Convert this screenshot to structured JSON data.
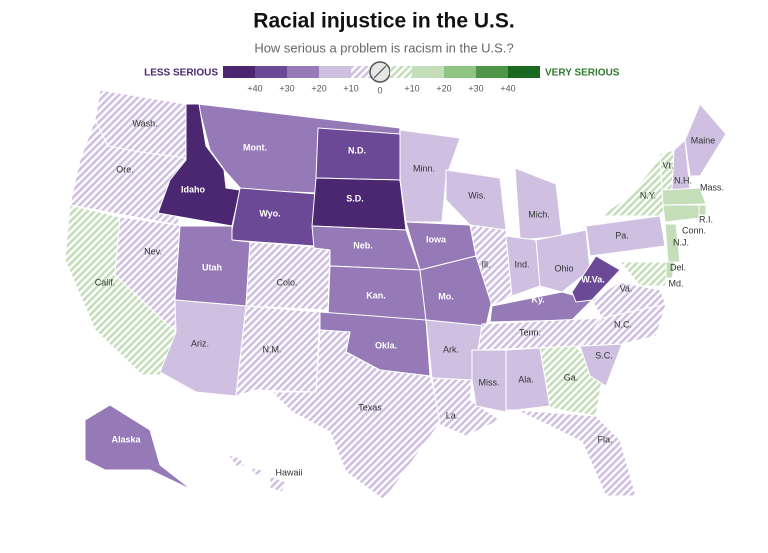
{
  "title": "Racial injustice in the U.S.",
  "subtitle": "How serious a problem is racism in the U.S.?",
  "legend": {
    "less_label": "LESS SERIOUS",
    "less_color": "#4a2770",
    "more_label": "VERY SERIOUS",
    "more_color": "#2f7a2f",
    "center_label": "0",
    "less": [
      {
        "label": "+40",
        "color": "#4a2770",
        "hatched": false
      },
      {
        "label": "+30",
        "color": "#6c4996",
        "hatched": false
      },
      {
        "label": "+20",
        "color": "#9679b7",
        "hatched": false
      },
      {
        "label": "+10",
        "color": "#cfc0e2",
        "hatched": false
      },
      {
        "color": "#cfc0e2",
        "hatched": true
      }
    ],
    "more": [
      {
        "color": "#c4deba",
        "hatched": true
      },
      {
        "label": "+10",
        "color": "#c4deba",
        "hatched": false
      },
      {
        "label": "+20",
        "color": "#8fc482",
        "hatched": false
      },
      {
        "label": "+30",
        "color": "#4f9447",
        "hatched": false
      },
      {
        "label": "+40",
        "color": "#1c6a22",
        "hatched": false
      }
    ]
  },
  "states": [
    {
      "label": "Wash.",
      "color": "#cfc0e2",
      "hatched": true
    },
    {
      "label": "Ore.",
      "color": "#cfc0e2",
      "hatched": true
    },
    {
      "label": "Calif.",
      "color": "#c4deba",
      "hatched": true
    },
    {
      "label": "Nev.",
      "color": "#cfc0e2",
      "hatched": true
    },
    {
      "label": "Mont.",
      "color": "#9679b7",
      "hatched": false
    },
    {
      "label": "Idaho",
      "color": "#4a2770",
      "hatched": false
    },
    {
      "label": "Wyo.",
      "color": "#6c4996",
      "hatched": false
    },
    {
      "label": "Utah",
      "color": "#9679b7",
      "hatched": false
    },
    {
      "label": "Colo.",
      "color": "#cfc0e2",
      "hatched": true
    },
    {
      "label": "Ariz.",
      "color": "#cfc0e2",
      "hatched": false
    },
    {
      "label": "N.M.",
      "color": "#cfc0e2",
      "hatched": true
    },
    {
      "label": "N.D.",
      "color": "#6c4996",
      "hatched": false
    },
    {
      "label": "S.D.",
      "color": "#4a2770",
      "hatched": false
    },
    {
      "label": "Neb.",
      "color": "#9679b7",
      "hatched": false
    },
    {
      "label": "Kan.",
      "color": "#9679b7",
      "hatched": false
    },
    {
      "label": "Okla.",
      "color": "#9679b7",
      "hatched": false
    },
    {
      "label": "Texas",
      "color": "#cfc0e2",
      "hatched": true
    },
    {
      "label": "Minn.",
      "color": "#cfc0e2",
      "hatched": false
    },
    {
      "label": "Iowa",
      "color": "#9679b7",
      "hatched": false
    },
    {
      "label": "Mo.",
      "color": "#9679b7",
      "hatched": false
    },
    {
      "label": "Ark.",
      "color": "#cfc0e2",
      "hatched": false
    },
    {
      "label": "La.",
      "color": "#cfc0e2",
      "hatched": true
    },
    {
      "label": "Wis.",
      "color": "#cfc0e2",
      "hatched": false
    },
    {
      "label": "Ill.",
      "color": "#cfc0e2",
      "hatched": true
    },
    {
      "label": "Mich.",
      "color": "#cfc0e2",
      "hatched": false
    },
    {
      "label": "Ind.",
      "color": "#cfc0e2",
      "hatched": false
    },
    {
      "label": "Ohio",
      "color": "#cfc0e2",
      "hatched": false
    },
    {
      "label": "Ky.",
      "color": "#9679b7",
      "hatched": false
    },
    {
      "label": "Tenn.",
      "color": "#cfc0e2",
      "hatched": true
    },
    {
      "label": "Miss.",
      "color": "#cfc0e2",
      "hatched": false
    },
    {
      "label": "Ala.",
      "color": "#cfc0e2",
      "hatched": false
    },
    {
      "label": "Ga.",
      "color": "#c4deba",
      "hatched": true
    },
    {
      "label": "Fla.",
      "color": "#cfc0e2",
      "hatched": true
    },
    {
      "label": "S.C.",
      "color": "#cfc0e2",
      "hatched": false
    },
    {
      "label": "N.C.",
      "color": "#cfc0e2",
      "hatched": true
    },
    {
      "label": "Va.",
      "color": "#cfc0e2",
      "hatched": true
    },
    {
      "label": "W.Va.",
      "color": "#6c4996",
      "hatched": false
    },
    {
      "label": "Pa.",
      "color": "#cfc0e2",
      "hatched": false
    },
    {
      "label": "N.Y.",
      "color": "#c4deba",
      "hatched": true
    },
    {
      "label": "Vt.",
      "color": "#c4deba",
      "hatched": true
    },
    {
      "label": "N.H.",
      "color": "#cfc0e2",
      "hatched": false
    },
    {
      "label": "Maine",
      "color": "#cfc0e2",
      "hatched": false
    },
    {
      "label": "Mass.",
      "color": "#c4deba",
      "hatched": false
    },
    {
      "label": "R.I.",
      "color": "#c4deba",
      "hatched": false
    },
    {
      "label": "Conn.",
      "color": "#c4deba",
      "hatched": false
    },
    {
      "label": "N.J.",
      "color": "#c4deba",
      "hatched": false
    },
    {
      "label": "Del.",
      "color": "#c4deba",
      "hatched": false
    },
    {
      "label": "Md.",
      "color": "#c4deba",
      "hatched": true
    },
    {
      "label": "Alaska",
      "color": "#9679b7",
      "hatched": false
    },
    {
      "label": "Hawaii",
      "color": "#cfc0e2",
      "hatched": true
    }
  ]
}
